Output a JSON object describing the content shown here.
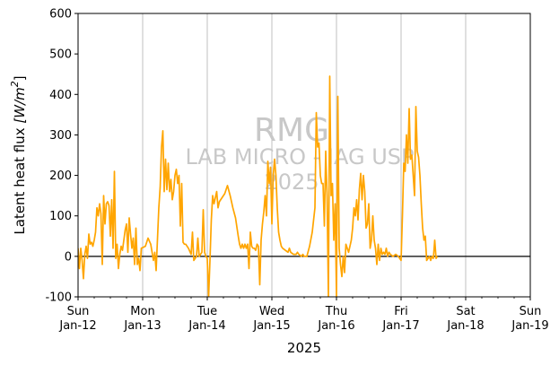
{
  "chart_data": {
    "type": "line",
    "xlabel": "2025",
    "ylabel_main": "Latent heat flux ",
    "ylabel_unit": "[W/m",
    "ylabel_sup": "2",
    "ylabel_close": "]",
    "ylim": [
      -100,
      600
    ],
    "yticks": [
      "-100",
      "0",
      "100",
      "200",
      "300",
      "400",
      "500",
      "600"
    ],
    "xlim": [
      "2025-01-12",
      "2025-01-19"
    ],
    "xticks": [
      {
        "date": "2025-01-12",
        "day": "Sun",
        "label": "Jan-12"
      },
      {
        "date": "2025-01-13",
        "day": "Mon",
        "label": "Jan-13"
      },
      {
        "date": "2025-01-14",
        "day": "Tue",
        "label": "Jan-14"
      },
      {
        "date": "2025-01-15",
        "day": "Wed",
        "label": "Jan-15"
      },
      {
        "date": "2025-01-16",
        "day": "Thu",
        "label": "Jan-16"
      },
      {
        "date": "2025-01-17",
        "day": "Fri",
        "label": "Jan-17"
      },
      {
        "date": "2025-01-18",
        "day": "Sat",
        "label": "Jan-18"
      },
      {
        "date": "2025-01-19",
        "day": "Sun",
        "label": "Jan-19"
      }
    ],
    "grid": "vertical",
    "zero_line": true,
    "series": [
      {
        "color": "#ffa500",
        "points": [
          [
            "2025-01-12 00:00",
            20
          ],
          [
            "2025-01-12 00:30",
            -30
          ],
          [
            "2025-01-12 01:00",
            20
          ],
          [
            "2025-01-12 01:30",
            -10
          ],
          [
            "2025-01-12 02:00",
            -55
          ],
          [
            "2025-01-12 02:30",
            5
          ],
          [
            "2025-01-12 03:00",
            25
          ],
          [
            "2025-01-12 03:30",
            -5
          ],
          [
            "2025-01-12 04:00",
            55
          ],
          [
            "2025-01-12 04:30",
            30
          ],
          [
            "2025-01-12 05:00",
            35
          ],
          [
            "2025-01-12 05:30",
            25
          ],
          [
            "2025-01-12 06:00",
            40
          ],
          [
            "2025-01-12 06:30",
            60
          ],
          [
            "2025-01-12 07:00",
            120
          ],
          [
            "2025-01-12 07:30",
            100
          ],
          [
            "2025-01-12 08:00",
            130
          ],
          [
            "2025-01-12 08:30",
            105
          ],
          [
            "2025-01-12 09:00",
            -20
          ],
          [
            "2025-01-12 09:30",
            150
          ],
          [
            "2025-01-12 10:00",
            80
          ],
          [
            "2025-01-12 10:30",
            130
          ],
          [
            "2025-01-12 11:00",
            135
          ],
          [
            "2025-01-12 11:30",
            125
          ],
          [
            "2025-01-12 12:00",
            50
          ],
          [
            "2025-01-12 12:30",
            140
          ],
          [
            "2025-01-12 13:00",
            20
          ],
          [
            "2025-01-12 13:30",
            210
          ],
          [
            "2025-01-12 14:00",
            -5
          ],
          [
            "2025-01-12 14:30",
            30
          ],
          [
            "2025-01-12 15:00",
            -30
          ],
          [
            "2025-01-12 15:30",
            5
          ],
          [
            "2025-01-12 16:00",
            25
          ],
          [
            "2025-01-12 16:30",
            15
          ],
          [
            "2025-01-12 17:00",
            40
          ],
          [
            "2025-01-12 17:30",
            65
          ],
          [
            "2025-01-12 18:00",
            80
          ],
          [
            "2025-01-12 18:30",
            10
          ],
          [
            "2025-01-12 19:00",
            95
          ],
          [
            "2025-01-12 19:30",
            55
          ],
          [
            "2025-01-12 20:00",
            20
          ],
          [
            "2025-01-12 20:30",
            45
          ],
          [
            "2025-01-12 21:00",
            -20
          ],
          [
            "2025-01-12 21:30",
            70
          ],
          [
            "2025-01-12 22:00",
            -20
          ],
          [
            "2025-01-12 22:30",
            -5
          ],
          [
            "2025-01-12 23:00",
            -35
          ],
          [
            "2025-01-12 23:30",
            20
          ],
          [
            "2025-01-13 01:00",
            25
          ],
          [
            "2025-01-13 02:00",
            45
          ],
          [
            "2025-01-13 03:00",
            30
          ],
          [
            "2025-01-13 04:00",
            -10
          ],
          [
            "2025-01-13 04:30",
            10
          ],
          [
            "2025-01-13 05:00",
            -35
          ],
          [
            "2025-01-13 06:00",
            120
          ],
          [
            "2025-01-13 06:30",
            170
          ],
          [
            "2025-01-13 07:00",
            270
          ],
          [
            "2025-01-13 07:30",
            310
          ],
          [
            "2025-01-13 08:00",
            160
          ],
          [
            "2025-01-13 08:30",
            240
          ],
          [
            "2025-01-13 09:00",
            165
          ],
          [
            "2025-01-13 09:30",
            230
          ],
          [
            "2025-01-13 10:00",
            160
          ],
          [
            "2025-01-13 10:30",
            190
          ],
          [
            "2025-01-13 11:00",
            140
          ],
          [
            "2025-01-13 11:30",
            160
          ],
          [
            "2025-01-13 12:00",
            200
          ],
          [
            "2025-01-13 12:30",
            215
          ],
          [
            "2025-01-13 13:00",
            180
          ],
          [
            "2025-01-13 13:30",
            200
          ],
          [
            "2025-01-13 14:00",
            75
          ],
          [
            "2025-01-13 14:30",
            180
          ],
          [
            "2025-01-13 15:00",
            35
          ],
          [
            "2025-01-13 15:30",
            30
          ],
          [
            "2025-01-13 16:00",
            30
          ],
          [
            "2025-01-13 17:00",
            20
          ],
          [
            "2025-01-13 18:00",
            5
          ],
          [
            "2025-01-13 18:30",
            60
          ],
          [
            "2025-01-13 19:00",
            -10
          ],
          [
            "2025-01-13 20:00",
            0
          ],
          [
            "2025-01-13 20:30",
            45
          ],
          [
            "2025-01-13 21:00",
            0
          ],
          [
            "2025-01-13 22:00",
            10
          ],
          [
            "2025-01-13 22:30",
            115
          ],
          [
            "2025-01-13 23:00",
            10
          ],
          [
            "2025-01-13 23:30",
            0
          ],
          [
            "2025-01-14 00:00",
            -5
          ],
          [
            "2025-01-14 00:30",
            -100
          ],
          [
            "2025-01-14 01:00",
            -10
          ],
          [
            "2025-01-14 01:30",
            90
          ],
          [
            "2025-01-14 02:00",
            150
          ],
          [
            "2025-01-14 02:30",
            130
          ],
          [
            "2025-01-14 03:00",
            145
          ],
          [
            "2025-01-14 03:30",
            160
          ],
          [
            "2025-01-14 04:00",
            120
          ],
          [
            "2025-01-14 04:30",
            135
          ],
          [
            "2025-01-14 05:30",
            145
          ],
          [
            "2025-01-14 06:30",
            155
          ],
          [
            "2025-01-14 07:30",
            175
          ],
          [
            "2025-01-14 08:30",
            150
          ],
          [
            "2025-01-14 09:30",
            120
          ],
          [
            "2025-01-14 10:30",
            95
          ],
          [
            "2025-01-14 11:30",
            50
          ],
          [
            "2025-01-14 12:00",
            30
          ],
          [
            "2025-01-14 12:30",
            20
          ],
          [
            "2025-01-14 13:00",
            30
          ],
          [
            "2025-01-14 13:30",
            20
          ],
          [
            "2025-01-14 14:00",
            30
          ],
          [
            "2025-01-14 14:30",
            20
          ],
          [
            "2025-01-14 15:00",
            30
          ],
          [
            "2025-01-14 15:30",
            -30
          ],
          [
            "2025-01-14 16:00",
            60
          ],
          [
            "2025-01-14 16:30",
            25
          ],
          [
            "2025-01-14 17:00",
            20
          ],
          [
            "2025-01-14 17:30",
            20
          ],
          [
            "2025-01-14 18:00",
            15
          ],
          [
            "2025-01-14 18:30",
            30
          ],
          [
            "2025-01-14 19:00",
            25
          ],
          [
            "2025-01-14 19:30",
            -70
          ],
          [
            "2025-01-14 20:00",
            40
          ],
          [
            "2025-01-14 20:30",
            80
          ],
          [
            "2025-01-14 21:00",
            110
          ],
          [
            "2025-01-14 21:30",
            150
          ],
          [
            "2025-01-14 22:00",
            100
          ],
          [
            "2025-01-14 22:30",
            235
          ],
          [
            "2025-01-14 23:00",
            180
          ],
          [
            "2025-01-14 23:30",
            220
          ],
          [
            "2025-01-15 00:00",
            80
          ],
          [
            "2025-01-15 00:30",
            200
          ],
          [
            "2025-01-15 01:00",
            240
          ],
          [
            "2025-01-15 01:30",
            200
          ],
          [
            "2025-01-15 02:00",
            120
          ],
          [
            "2025-01-15 02:30",
            60
          ],
          [
            "2025-01-15 03:00",
            40
          ],
          [
            "2025-01-15 03:30",
            25
          ],
          [
            "2025-01-15 04:00",
            20
          ],
          [
            "2025-01-15 05:00",
            15
          ],
          [
            "2025-01-15 06:00",
            10
          ],
          [
            "2025-01-15 06:30",
            20
          ],
          [
            "2025-01-15 07:00",
            10
          ],
          [
            "2025-01-15 08:00",
            5
          ],
          [
            "2025-01-15 09:00",
            5
          ],
          [
            "2025-01-15 09:30",
            10
          ],
          [
            "2025-01-15 10:00",
            5
          ],
          [
            "2025-01-15 11:00",
            0
          ],
          [
            "2025-01-15 11:30",
            5
          ],
          [
            "2025-01-15 12:00",
            0
          ],
          [
            "2025-01-15 13:00",
            0
          ],
          [
            "2025-01-15 14:00",
            25
          ],
          [
            "2025-01-15 15:00",
            60
          ],
          [
            "2025-01-15 16:00",
            120
          ],
          [
            "2025-01-15 16:30",
            355
          ],
          [
            "2025-01-15 17:00",
            270
          ],
          [
            "2025-01-15 17:30",
            280
          ],
          [
            "2025-01-15 18:00",
            200
          ],
          [
            "2025-01-15 18:30",
            180
          ],
          [
            "2025-01-15 19:00",
            180
          ],
          [
            "2025-01-15 19:30",
            75
          ],
          [
            "2025-01-15 20:00",
            260
          ],
          [
            "2025-01-15 20:30",
            150
          ],
          [
            "2025-01-15 21:00",
            -100
          ],
          [
            "2025-01-15 21:30",
            445
          ],
          [
            "2025-01-15 22:00",
            150
          ],
          [
            "2025-01-15 22:30",
            180
          ],
          [
            "2025-01-15 23:00",
            40
          ],
          [
            "2025-01-15 23:30",
            130
          ],
          [
            "2025-01-16 00:00",
            -100
          ],
          [
            "2025-01-16 00:30",
            395
          ],
          [
            "2025-01-16 01:00",
            20
          ],
          [
            "2025-01-16 01:30",
            -20
          ],
          [
            "2025-01-16 02:00",
            -50
          ],
          [
            "2025-01-16 02:30",
            0
          ],
          [
            "2025-01-16 03:00",
            -40
          ],
          [
            "2025-01-16 03:30",
            30
          ],
          [
            "2025-01-16 04:00",
            20
          ],
          [
            "2025-01-16 04:30",
            10
          ],
          [
            "2025-01-16 05:00",
            25
          ],
          [
            "2025-01-16 05:30",
            40
          ],
          [
            "2025-01-16 06:00",
            70
          ],
          [
            "2025-01-16 06:30",
            120
          ],
          [
            "2025-01-16 07:00",
            100
          ],
          [
            "2025-01-16 07:30",
            140
          ],
          [
            "2025-01-16 08:00",
            90
          ],
          [
            "2025-01-16 08:30",
            165
          ],
          [
            "2025-01-16 09:00",
            205
          ],
          [
            "2025-01-16 09:30",
            140
          ],
          [
            "2025-01-16 10:00",
            200
          ],
          [
            "2025-01-16 10:30",
            160
          ],
          [
            "2025-01-16 11:00",
            70
          ],
          [
            "2025-01-16 11:30",
            80
          ],
          [
            "2025-01-16 12:00",
            130
          ],
          [
            "2025-01-16 12:30",
            20
          ],
          [
            "2025-01-16 13:00",
            40
          ],
          [
            "2025-01-16 13:30",
            100
          ],
          [
            "2025-01-16 14:00",
            40
          ],
          [
            "2025-01-16 14:30",
            20
          ],
          [
            "2025-01-16 15:00",
            -20
          ],
          [
            "2025-01-16 15:30",
            30
          ],
          [
            "2025-01-16 16:00",
            -10
          ],
          [
            "2025-01-16 16:30",
            20
          ],
          [
            "2025-01-16 17:00",
            5
          ],
          [
            "2025-01-16 17:30",
            10
          ],
          [
            "2025-01-16 18:00",
            5
          ],
          [
            "2025-01-16 18:30",
            20
          ],
          [
            "2025-01-16 19:00",
            0
          ],
          [
            "2025-01-16 19:30",
            10
          ],
          [
            "2025-01-16 20:00",
            5
          ],
          [
            "2025-01-16 21:00",
            0
          ],
          [
            "2025-01-16 22:00",
            5
          ],
          [
            "2025-01-16 23:00",
            0
          ],
          [
            "2025-01-17 00:00",
            -10
          ],
          [
            "2025-01-17 00:30",
            100
          ],
          [
            "2025-01-17 01:00",
            230
          ],
          [
            "2025-01-17 01:30",
            210
          ],
          [
            "2025-01-17 02:00",
            300
          ],
          [
            "2025-01-17 02:30",
            230
          ],
          [
            "2025-01-17 03:00",
            365
          ],
          [
            "2025-01-17 03:30",
            240
          ],
          [
            "2025-01-17 04:00",
            250
          ],
          [
            "2025-01-17 04:30",
            200
          ],
          [
            "2025-01-17 05:00",
            150
          ],
          [
            "2025-01-17 05:30",
            370
          ],
          [
            "2025-01-17 06:00",
            260
          ],
          [
            "2025-01-17 06:30",
            245
          ],
          [
            "2025-01-17 07:00",
            200
          ],
          [
            "2025-01-17 07:30",
            130
          ],
          [
            "2025-01-17 08:00",
            70
          ],
          [
            "2025-01-17 08:30",
            40
          ],
          [
            "2025-01-17 09:00",
            50
          ],
          [
            "2025-01-17 09:30",
            -10
          ],
          [
            "2025-01-17 10:00",
            -5
          ],
          [
            "2025-01-17 10:30",
            0
          ],
          [
            "2025-01-17 11:00",
            -10
          ],
          [
            "2025-01-17 11:30",
            0
          ],
          [
            "2025-01-17 12:00",
            -5
          ],
          [
            "2025-01-17 12:30",
            40
          ],
          [
            "2025-01-17 13:00",
            -5
          ],
          [
            "2025-01-17 13:30",
            0
          ]
        ]
      }
    ]
  },
  "watermark": {
    "line1": "RMG",
    "line2": "LAB MICRO - IAG USP",
    "line3": "2025"
  }
}
